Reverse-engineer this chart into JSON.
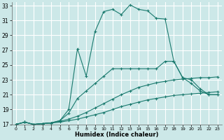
{
  "xlabel": "Humidex (Indice chaleur)",
  "bg_color": "#cce8e8",
  "grid_color": "#ffffff",
  "line_color": "#1a7a6e",
  "xlim": [
    -0.5,
    23.5
  ],
  "ylim": [
    17,
    33.5
  ],
  "xticks": [
    0,
    1,
    2,
    3,
    4,
    5,
    6,
    7,
    8,
    9,
    10,
    11,
    12,
    13,
    14,
    15,
    16,
    17,
    18,
    19,
    20,
    21,
    22,
    23
  ],
  "yticks": [
    17,
    19,
    21,
    23,
    25,
    27,
    29,
    31,
    33
  ],
  "lines": [
    {
      "x": [
        0,
        1,
        2,
        3,
        4,
        5,
        6,
        7,
        8,
        9,
        10,
        11,
        12,
        13,
        14,
        15,
        16,
        17,
        18,
        19,
        20,
        21,
        22,
        23
      ],
      "y": [
        17,
        17.3,
        17,
        17.1,
        17.2,
        17.3,
        17.5,
        17.7,
        18.0,
        18.3,
        18.6,
        19.0,
        19.4,
        19.7,
        20.0,
        20.3,
        20.5,
        20.7,
        20.9,
        21.0,
        21.1,
        21.2,
        21.3,
        21.4
      ]
    },
    {
      "x": [
        0,
        1,
        2,
        3,
        4,
        5,
        6,
        7,
        8,
        9,
        10,
        11,
        12,
        13,
        14,
        15,
        16,
        17,
        18,
        19,
        20,
        21,
        22,
        23
      ],
      "y": [
        17,
        17.3,
        17,
        17.1,
        17.2,
        17.4,
        17.7,
        18.1,
        18.6,
        19.2,
        19.8,
        20.4,
        21.0,
        21.5,
        22.0,
        22.3,
        22.6,
        22.8,
        23.0,
        23.1,
        23.2,
        23.3,
        23.3,
        23.4
      ]
    },
    {
      "x": [
        0,
        1,
        2,
        3,
        4,
        5,
        6,
        7,
        8,
        9,
        10,
        11,
        12,
        13,
        14,
        15,
        16,
        17,
        18,
        19,
        20,
        21,
        22,
        23
      ],
      "y": [
        17,
        17.3,
        17,
        17.1,
        17.2,
        17.5,
        18.5,
        20.5,
        21.5,
        22.5,
        23.5,
        24.5,
        24.5,
        24.5,
        24.5,
        24.5,
        24.5,
        25.5,
        25.5,
        23.3,
        22.5,
        21.5,
        21.0,
        21.0
      ]
    },
    {
      "x": [
        0,
        1,
        2,
        3,
        4,
        5,
        6,
        7,
        8,
        9,
        10,
        11,
        12,
        13,
        14,
        15,
        16,
        17,
        18,
        19,
        20,
        21,
        22,
        23
      ],
      "y": [
        17,
        17.3,
        17,
        17.1,
        17.2,
        17.5,
        19.0,
        27.2,
        23.5,
        29.5,
        32.2,
        32.5,
        31.8,
        33.1,
        32.5,
        32.3,
        31.3,
        31.2,
        25.5,
        23.3,
        23.0,
        21.8,
        21.0,
        21.0
      ]
    }
  ]
}
